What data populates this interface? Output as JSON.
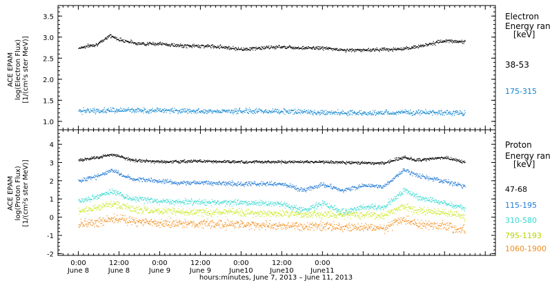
{
  "chart_data": [
    {
      "type": "scatter",
      "panel": "electron",
      "ylabel_lines": [
        "ACE EPAM",
        "log(Electron Flux)",
        "[1/(cm²s ster MeV)]"
      ],
      "ylim": [
        0.8,
        3.75
      ],
      "yticks": [
        1.0,
        1.5,
        2.0,
        2.5,
        3.0,
        3.5
      ],
      "ytick_labels": [
        "1.0",
        "1.5",
        "2.0",
        "2.5",
        "3.0",
        "3.5"
      ],
      "legend_title": [
        "Electron",
        "Energy ran",
        "[keV]"
      ],
      "series": [
        {
          "name": "38-53",
          "color": "#000000",
          "hours": [
            0,
            6,
            9,
            12,
            18,
            24,
            30,
            36,
            42,
            48,
            54,
            60,
            66,
            72,
            78,
            84,
            90,
            96,
            102,
            108,
            114
          ],
          "values": [
            2.75,
            2.85,
            3.05,
            2.95,
            2.85,
            2.85,
            2.8,
            2.8,
            2.78,
            2.72,
            2.75,
            2.78,
            2.75,
            2.75,
            2.7,
            2.7,
            2.72,
            2.72,
            2.82,
            2.92,
            2.9
          ]
        },
        {
          "name": "175-315",
          "color": "#0a84d0",
          "hours": [
            0,
            12,
            24,
            36,
            48,
            60,
            72,
            84,
            96,
            108,
            114
          ],
          "values": [
            1.25,
            1.27,
            1.27,
            1.25,
            1.25,
            1.25,
            1.22,
            1.2,
            1.22,
            1.22,
            1.2
          ]
        }
      ]
    },
    {
      "type": "scatter",
      "panel": "proton",
      "ylabel_lines": [
        "ACE EPAM",
        "log(Proton Flux)",
        "[1/(cm²s ster MeV)]"
      ],
      "ylim": [
        -2.1,
        4.8
      ],
      "yticks": [
        -2,
        -1,
        0,
        1,
        2,
        3,
        4
      ],
      "ytick_labels": [
        "-2",
        "-1",
        "0",
        "1",
        "2",
        "3",
        "4"
      ],
      "legend_title": [
        "Proton",
        "Energy ran",
        "[keV]"
      ],
      "series": [
        {
          "name": "47-68",
          "color": "#000000",
          "hours": [
            0,
            6,
            10,
            16,
            24,
            36,
            48,
            60,
            72,
            84,
            90,
            96,
            100,
            108,
            114
          ],
          "values": [
            3.15,
            3.3,
            3.45,
            3.15,
            3.05,
            3.1,
            3.05,
            3.05,
            3.05,
            3.0,
            3.0,
            3.3,
            3.15,
            3.3,
            3.05
          ]
        },
        {
          "name": "115-195",
          "color": "#1f78d4",
          "hours": [
            0,
            6,
            10,
            16,
            24,
            30,
            36,
            48,
            60,
            66,
            72,
            78,
            84,
            90,
            96,
            100,
            108,
            114
          ],
          "values": [
            2.0,
            2.3,
            2.6,
            2.1,
            2.0,
            1.9,
            1.9,
            1.85,
            1.85,
            1.5,
            1.8,
            1.5,
            1.75,
            1.7,
            2.6,
            2.3,
            2.0,
            1.7
          ]
        },
        {
          "name": "310-580",
          "color": "#33d8cf",
          "hours": [
            0,
            6,
            10,
            16,
            24,
            36,
            48,
            60,
            66,
            72,
            78,
            84,
            90,
            96,
            100,
            108,
            114
          ],
          "values": [
            0.9,
            1.2,
            1.45,
            1.0,
            0.9,
            0.85,
            0.8,
            0.75,
            0.4,
            0.75,
            0.3,
            0.6,
            0.55,
            1.5,
            1.1,
            0.8,
            0.5
          ]
        },
        {
          "name": "795-1193",
          "color": "#c9e81c",
          "hours": [
            0,
            6,
            10,
            16,
            24,
            36,
            48,
            60,
            72,
            84,
            90,
            96,
            100,
            108,
            114
          ],
          "values": [
            0.3,
            0.55,
            0.75,
            0.45,
            0.35,
            0.3,
            0.25,
            0.2,
            0.15,
            0.15,
            0.1,
            0.65,
            0.35,
            0.3,
            0.05
          ]
        },
        {
          "name": "1060-1900",
          "color": "#f28c1a",
          "hours": [
            0,
            6,
            10,
            16,
            24,
            36,
            48,
            60,
            72,
            84,
            90,
            96,
            100,
            108,
            114
          ],
          "values": [
            -0.4,
            -0.2,
            -0.05,
            -0.2,
            -0.3,
            -0.35,
            -0.4,
            -0.45,
            -0.5,
            -0.55,
            -0.6,
            -0.1,
            -0.35,
            -0.45,
            -0.7
          ]
        }
      ]
    }
  ],
  "x_axis": {
    "range_hours": [
      -6,
      123
    ],
    "ticks": [
      {
        "hour": 0,
        "time": "0:00",
        "day": "June 8"
      },
      {
        "hour": 12,
        "time": "12:00",
        "day": "June 8"
      },
      {
        "hour": 24,
        "time": "0:00",
        "day": "June 9"
      },
      {
        "hour": 36,
        "time": "12:00",
        "day": "June 9"
      },
      {
        "hour": 48,
        "time": "0:00",
        "day": "June10"
      },
      {
        "hour": 60,
        "time": "12:00",
        "day": "June10"
      },
      {
        "hour": 72,
        "time": "0:00",
        "day": "June11"
      }
    ],
    "xlabel": "hours:minutes,  June  7, 2013 – June 11, 2013"
  }
}
